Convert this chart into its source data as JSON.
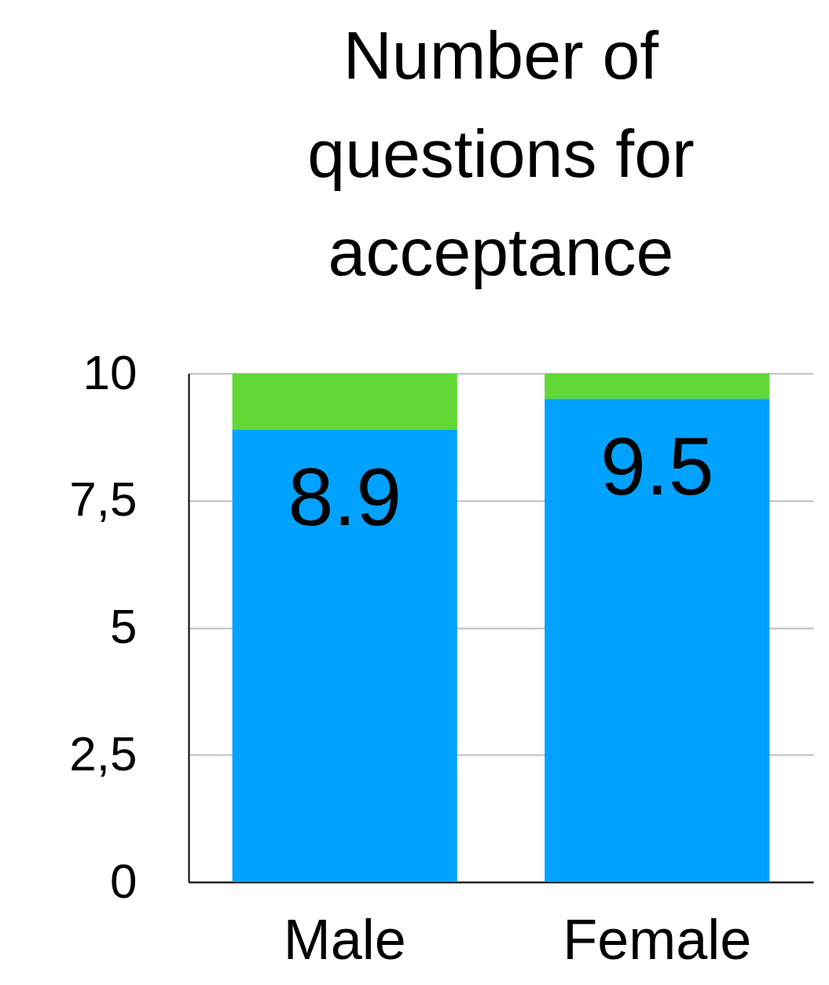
{
  "chart_data": {
    "type": "bar",
    "title": "Number of questions for acceptance",
    "categories": [
      "Male",
      "Female"
    ],
    "stacked": true,
    "series": [
      {
        "color": "#00a2ff",
        "values": [
          8.9,
          9.5
        ],
        "value_labels": [
          "8.9",
          "9.5"
        ]
      },
      {
        "color": "#61d836",
        "values": [
          1.1,
          0.5
        ]
      }
    ],
    "ylim": [
      0,
      10
    ],
    "yticks": [
      0,
      {
        "value": 2.5,
        "label": "2,5"
      },
      5,
      {
        "value": 7.5,
        "label": "7,5"
      },
      10
    ],
    "grid": "y",
    "legend": false
  }
}
